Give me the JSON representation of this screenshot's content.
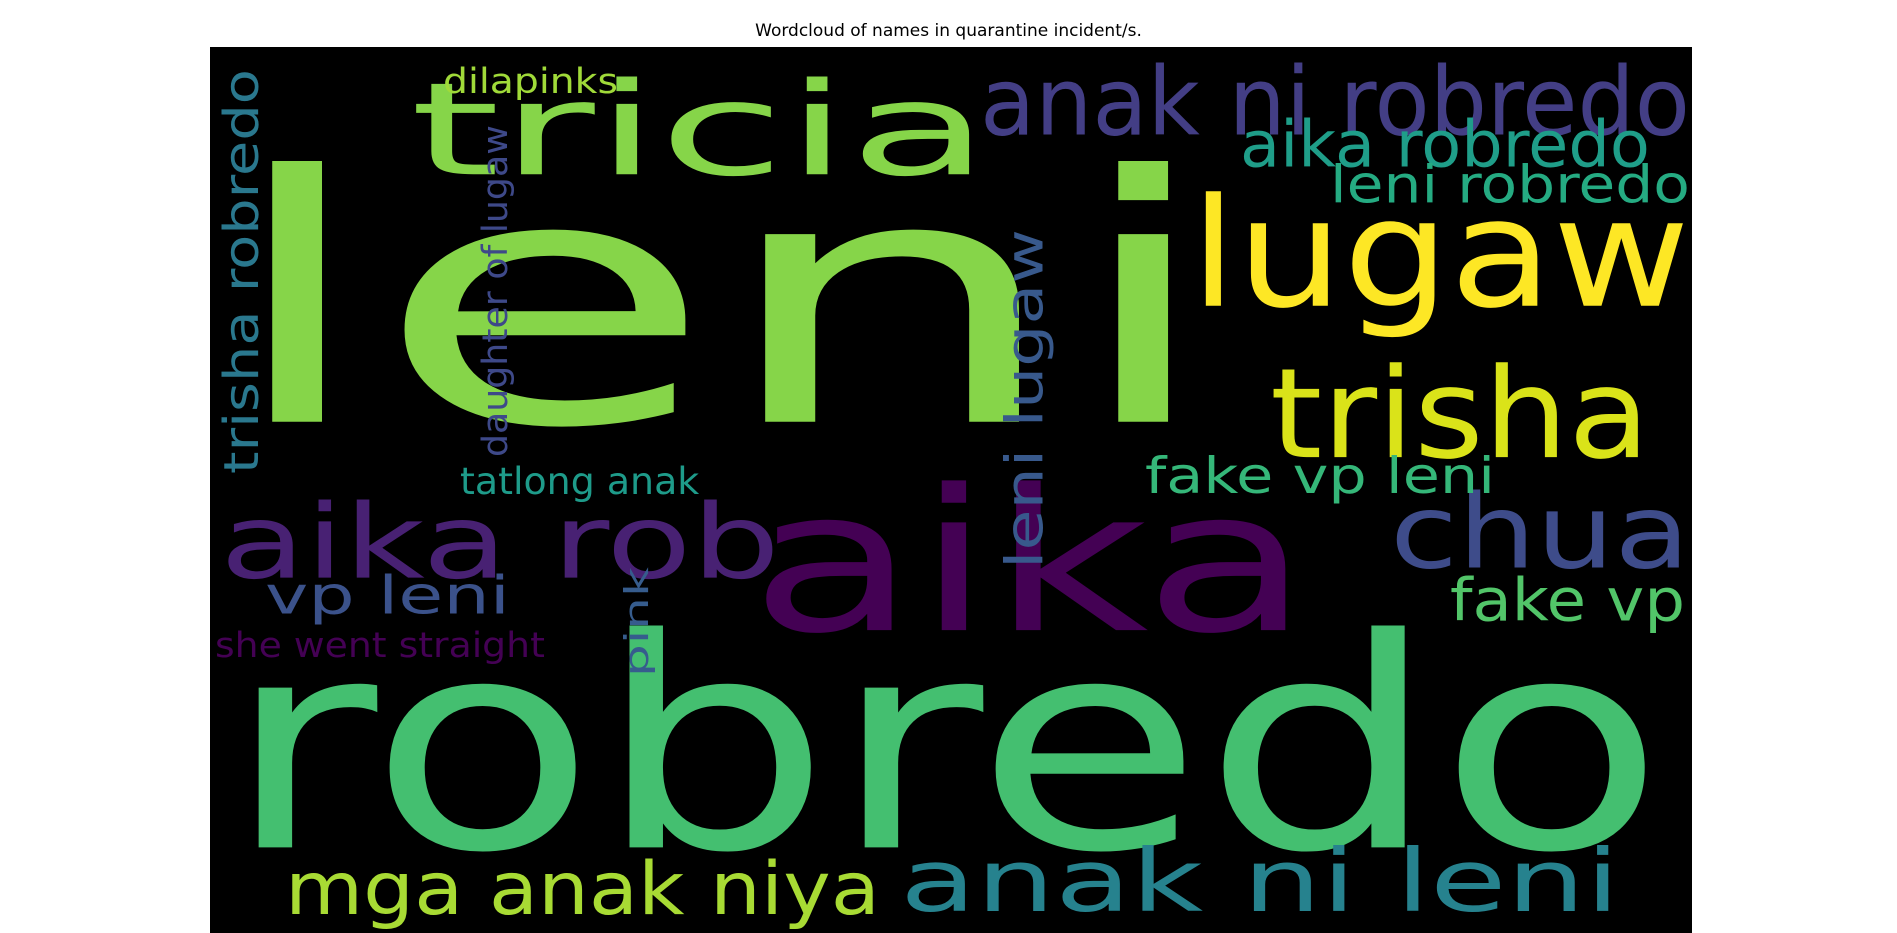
{
  "chart_data": {
    "type": "wordcloud",
    "title": "Wordcloud of names in quarantine incident/s.",
    "background": "#000000",
    "colormap": "viridis",
    "words": [
      {
        "text": "leni",
        "color": "#86d549"
      },
      {
        "text": "robredo",
        "color": "#44bf70"
      },
      {
        "text": "aika",
        "color": "#440154"
      },
      {
        "text": "tricia",
        "color": "#86d549"
      },
      {
        "text": "lugaw",
        "color": "#fde725"
      },
      {
        "text": "anak ni robredo",
        "color": "#433e85"
      },
      {
        "text": "trisha",
        "color": "#dae319"
      },
      {
        "text": "chua",
        "color": "#3e4c8a"
      },
      {
        "text": "aika rob",
        "color": "#482173"
      },
      {
        "text": "anak ni leni",
        "color": "#26828e"
      },
      {
        "text": "mga anak niya",
        "color": "#a8db34"
      },
      {
        "text": "aika robredo",
        "color": "#1f9e89"
      },
      {
        "text": "leni robredo",
        "color": "#25ab82"
      },
      {
        "text": "fake vp leni",
        "color": "#35b779"
      },
      {
        "text": "fake vp",
        "color": "#52c569"
      },
      {
        "text": "vp leni",
        "color": "#3b528b"
      },
      {
        "text": "leni lugaw",
        "color": "#38598c"
      },
      {
        "text": "trisha robredo",
        "color": "#2a788e"
      },
      {
        "text": "daughter of lugaw",
        "color": "#3e4989"
      },
      {
        "text": "dilapinks",
        "color": "#a0da39"
      },
      {
        "text": "tatlong anak",
        "color": "#1e9b8a"
      },
      {
        "text": "she went straight",
        "color": "#440154"
      },
      {
        "text": "pink",
        "color": "#365c8d"
      }
    ]
  }
}
